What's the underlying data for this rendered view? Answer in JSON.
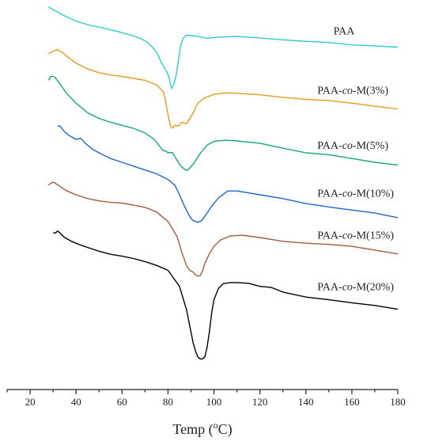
{
  "chart_data": {
    "type": "line",
    "xlabel": "Temp (°C)",
    "xlim": [
      10,
      180
    ],
    "xticks": [
      20,
      40,
      60,
      80,
      100,
      120,
      140,
      160,
      180
    ],
    "ylabel": "",
    "yticks": [],
    "grid": false,
    "legend": "none",
    "series": [
      {
        "name": "PAA",
        "color": "#33cccc",
        "label_x": 152.0,
        "label_y": 0.08,
        "x": [
          28,
          34,
          40,
          46,
          52,
          58,
          64,
          68,
          71,
          73,
          75,
          76,
          77,
          78,
          78.5,
          79.5,
          80.5,
          81.5,
          82.5,
          83.5,
          84.5,
          85.5,
          86.5,
          88,
          90,
          93,
          97,
          102,
          110,
          120,
          130,
          140,
          150,
          160,
          170,
          180
        ],
        "y": [
          0.008,
          0.028,
          0.045,
          0.056,
          0.063,
          0.072,
          0.082,
          0.09,
          0.1,
          0.112,
          0.126,
          0.138,
          0.152,
          0.163,
          0.169,
          0.178,
          0.194,
          0.222,
          0.212,
          0.188,
          0.15,
          0.11,
          0.09,
          0.082,
          0.083,
          0.085,
          0.09,
          0.087,
          0.085,
          0.089,
          0.094,
          0.098,
          0.101,
          0.107,
          0.11,
          0.113
        ]
      },
      {
        "name": "PAA-co-M(3%)",
        "color": "#e69a1e",
        "label_x": 145.0,
        "label_y": 0.235,
        "x": [
          28,
          30,
          32,
          34,
          37,
          40,
          45,
          50,
          55,
          60,
          65,
          70,
          75,
          78,
          79,
          80,
          81,
          82,
          83,
          84,
          85,
          86,
          87,
          88,
          89,
          91,
          93,
          96,
          100,
          105,
          110,
          120,
          130,
          140,
          150,
          160,
          170,
          180
        ],
        "y": [
          0.13,
          0.124,
          0.12,
          0.127,
          0.142,
          0.155,
          0.17,
          0.18,
          0.186,
          0.19,
          0.195,
          0.2,
          0.212,
          0.23,
          0.255,
          0.29,
          0.318,
          0.325,
          0.318,
          0.32,
          0.318,
          0.31,
          0.312,
          0.314,
          0.305,
          0.285,
          0.26,
          0.246,
          0.237,
          0.233,
          0.234,
          0.238,
          0.245,
          0.25,
          0.253,
          0.26,
          0.268,
          0.275
        ]
      },
      {
        "name": "PAA-co-M(5%)",
        "color": "#1aa380",
        "label_x": 145.0,
        "label_y": 0.38,
        "x": [
          28,
          29,
          30,
          31,
          33,
          36,
          40,
          45,
          50,
          55,
          60,
          65,
          70,
          74,
          76,
          78,
          79,
          80,
          81,
          82,
          83,
          84,
          85,
          86,
          87,
          88,
          89,
          91,
          94,
          97,
          100,
          105,
          110,
          120,
          130,
          140,
          150,
          155,
          160,
          170,
          180
        ],
        "y": [
          0.2,
          0.19,
          0.19,
          0.193,
          0.21,
          0.235,
          0.26,
          0.285,
          0.3,
          0.31,
          0.318,
          0.326,
          0.338,
          0.355,
          0.37,
          0.385,
          0.385,
          0.39,
          0.389,
          0.39,
          0.4,
          0.41,
          0.42,
          0.427,
          0.432,
          0.436,
          0.433,
          0.42,
          0.392,
          0.37,
          0.36,
          0.357,
          0.359,
          0.365,
          0.378,
          0.39,
          0.395,
          0.4,
          0.405,
          0.415,
          0.422
        ]
      },
      {
        "name": "PAA-co-M(10%)",
        "color": "#1f66cc",
        "label_x": 145.0,
        "label_y": 0.505,
        "x": [
          32,
          33,
          35,
          37,
          40,
          42,
          44,
          47,
          50,
          55,
          60,
          65,
          70,
          75,
          80,
          83,
          85,
          87,
          89,
          90,
          91,
          92,
          93,
          94,
          95,
          97,
          99,
          102,
          106,
          110,
          120,
          130,
          140,
          150,
          160,
          170,
          180
        ],
        "y": [
          0.32,
          0.32,
          0.335,
          0.345,
          0.355,
          0.352,
          0.365,
          0.38,
          0.39,
          0.405,
          0.415,
          0.425,
          0.435,
          0.445,
          0.46,
          0.475,
          0.5,
          0.528,
          0.552,
          0.562,
          0.568,
          0.57,
          0.572,
          0.57,
          0.565,
          0.548,
          0.53,
          0.508,
          0.49,
          0.49,
          0.5,
          0.51,
          0.523,
          0.532,
          0.54,
          0.548,
          0.56
        ]
      },
      {
        "name": "PAA-co-M(15%)",
        "color": "#a65a3c",
        "label_x": 145.0,
        "label_y": 0.615,
        "x": [
          28,
          29,
          30,
          31,
          33,
          36,
          40,
          45,
          50,
          55,
          60,
          65,
          70,
          75,
          80,
          84,
          86,
          88,
          89,
          90,
          91,
          92,
          93,
          94,
          95,
          96,
          98,
          100,
          103,
          107,
          112,
          120,
          130,
          140,
          150,
          160,
          170,
          180
        ],
        "y": [
          0.475,
          0.47,
          0.467,
          0.47,
          0.478,
          0.49,
          0.5,
          0.51,
          0.516,
          0.52,
          0.522,
          0.527,
          0.533,
          0.545,
          0.57,
          0.61,
          0.65,
          0.685,
          0.695,
          0.7,
          0.703,
          0.71,
          0.713,
          0.712,
          0.7,
          0.68,
          0.655,
          0.635,
          0.618,
          0.608,
          0.606,
          0.612,
          0.622,
          0.627,
          0.63,
          0.635,
          0.645,
          0.655
        ]
      },
      {
        "name": "PAA-co-M(20%)",
        "color": "#000000",
        "label_x": 145.0,
        "label_y": 0.75,
        "x": [
          30,
          31,
          32,
          33,
          35,
          38,
          42,
          46,
          50,
          55,
          60,
          65,
          70,
          75,
          80,
          85,
          88,
          90,
          91,
          92,
          93,
          94,
          95,
          96,
          97,
          98,
          99,
          100,
          102,
          104,
          107,
          110,
          115,
          120,
          125,
          130,
          140,
          150,
          160,
          170,
          180
        ],
        "y": [
          0.6,
          0.6,
          0.595,
          0.6,
          0.612,
          0.622,
          0.632,
          0.64,
          0.648,
          0.656,
          0.661,
          0.667,
          0.675,
          0.685,
          0.698,
          0.74,
          0.8,
          0.86,
          0.89,
          0.91,
          0.925,
          0.93,
          0.93,
          0.925,
          0.9,
          0.86,
          0.81,
          0.775,
          0.745,
          0.733,
          0.73,
          0.73,
          0.732,
          0.74,
          0.743,
          0.755,
          0.768,
          0.775,
          0.783,
          0.79,
          0.8
        ]
      }
    ]
  }
}
